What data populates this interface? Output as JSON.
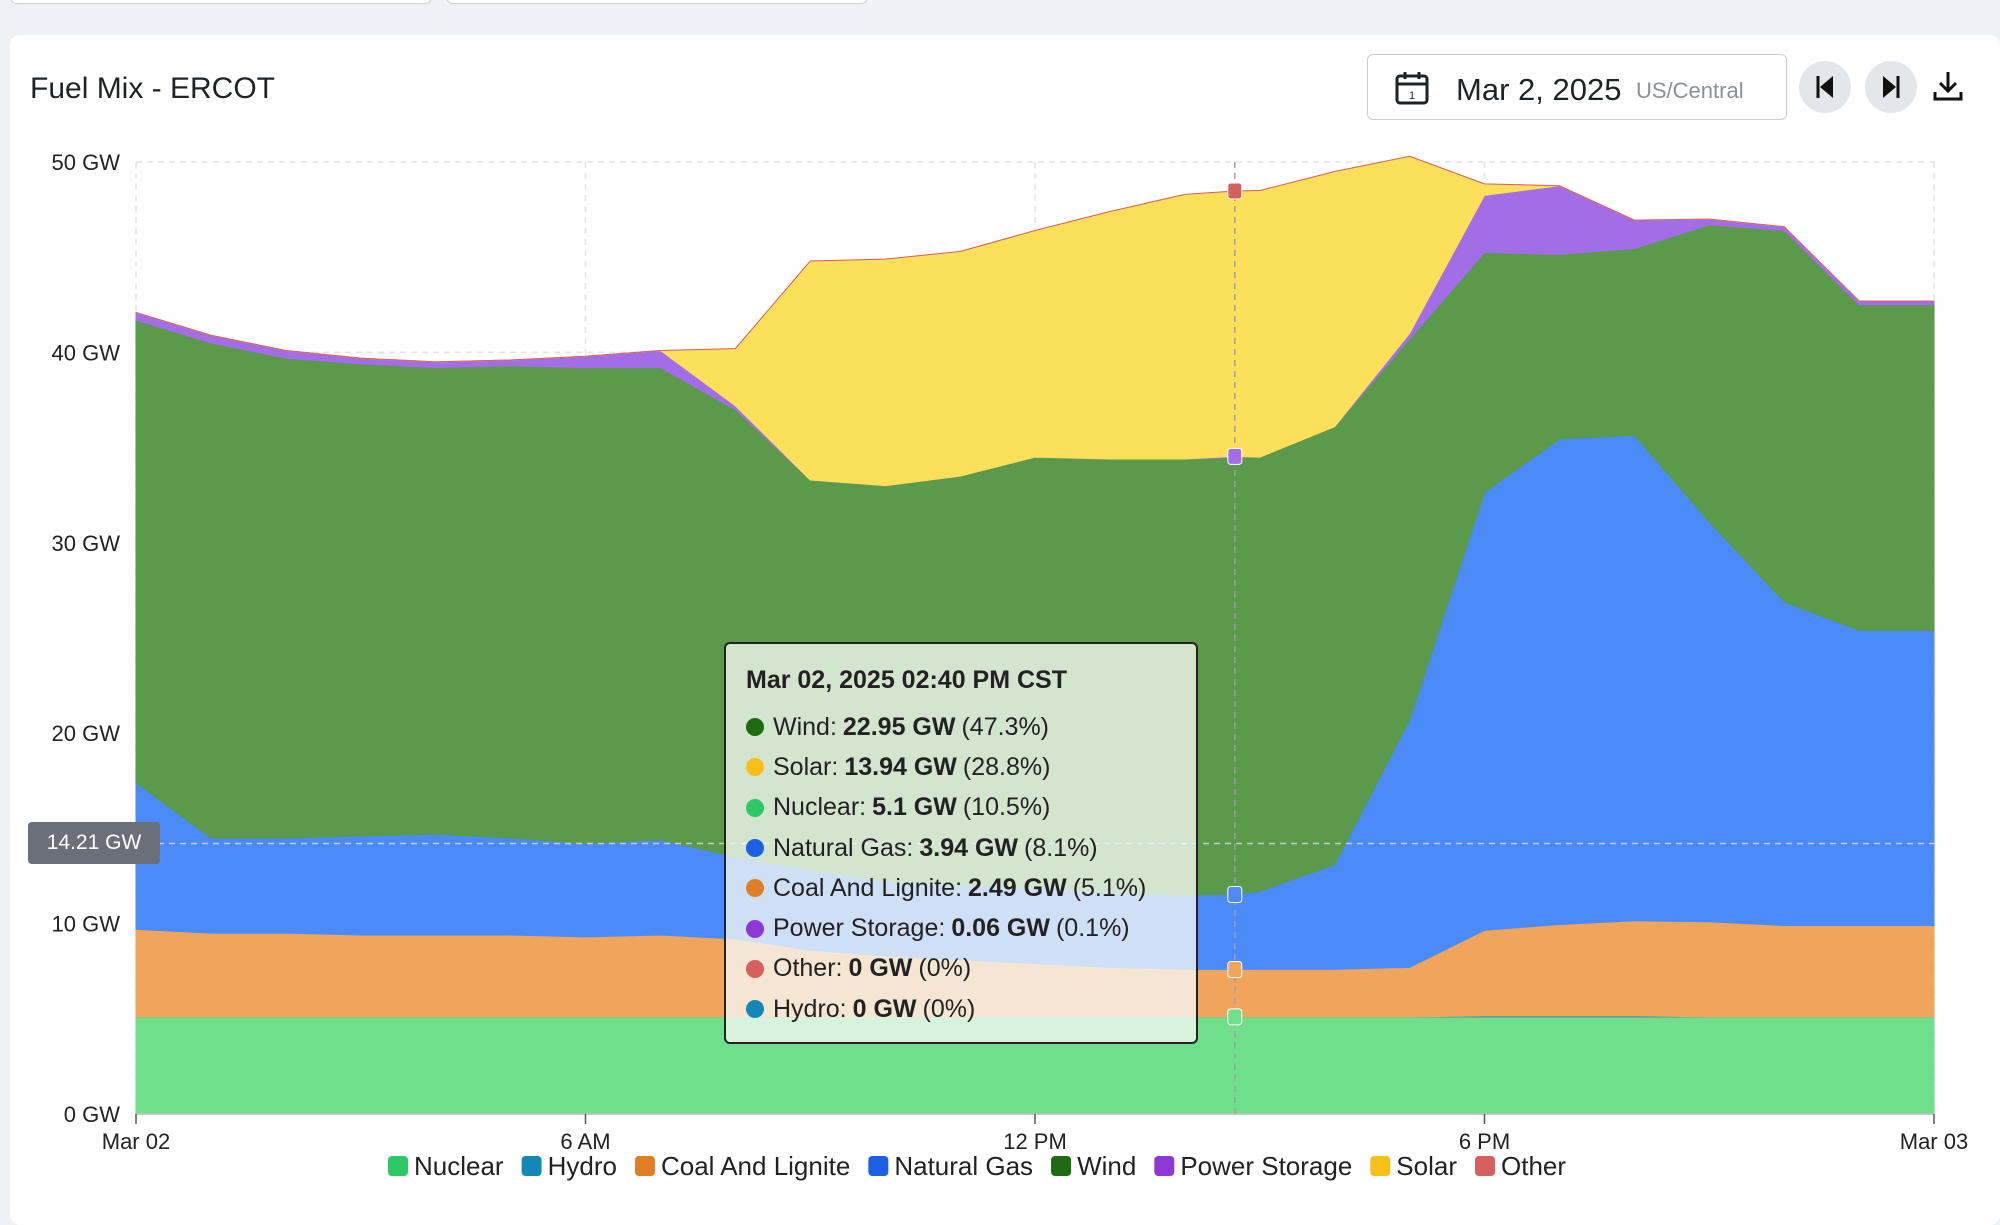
{
  "header": {
    "title": "Fuel Mix - ERCOT",
    "date": "Mar 2, 2025",
    "timezone": "US/Central"
  },
  "icons": {
    "calendar": "calendar-icon",
    "prev": "caret-left-icon",
    "next": "caret-right-icon",
    "download": "download-icon"
  },
  "tooltip": {
    "timestamp": "Mar 02, 2025 02:40 PM CST",
    "rows": [
      {
        "name": "Wind",
        "value": "22.95 GW",
        "pct": "(47.3%)",
        "color": "#1f6b12"
      },
      {
        "name": "Solar",
        "value": "13.94 GW",
        "pct": "(28.8%)",
        "color": "#f6c018"
      },
      {
        "name": "Nuclear",
        "value": "5.1 GW",
        "pct": "(10.5%)",
        "color": "#2ec866"
      },
      {
        "name": "Natural Gas",
        "value": "3.94 GW",
        "pct": "(8.1%)",
        "color": "#1c5fe3"
      },
      {
        "name": "Coal And Lignite",
        "value": "2.49 GW",
        "pct": "(5.1%)",
        "color": "#e07f23"
      },
      {
        "name": "Power Storage",
        "value": "0.06 GW",
        "pct": "(0.1%)",
        "color": "#8e38d3"
      },
      {
        "name": "Other",
        "value": "0 GW",
        "pct": "(0%)",
        "color": "#d65f5f"
      },
      {
        "name": "Hydro",
        "value": "0 GW",
        "pct": "(0%)",
        "color": "#1388b6"
      }
    ]
  },
  "crosshair": {
    "label": "14.21 GW",
    "value": 14.21,
    "time_hours": 14.667
  },
  "chart_data": {
    "type": "area",
    "stacked": true,
    "x_unit": "hours since Mar 02 00:00 CST",
    "x": [
      0,
      1,
      2,
      3,
      4,
      5,
      6,
      7,
      8,
      9,
      10,
      11,
      12,
      13,
      14,
      14.667,
      15,
      16,
      17,
      18,
      19,
      20,
      21,
      22,
      23,
      24
    ],
    "xlim": [
      0,
      24
    ],
    "ylim": [
      0,
      50
    ],
    "x_ticks": [
      {
        "x": 0,
        "label": "Mar 02"
      },
      {
        "x": 6,
        "label": "6 AM"
      },
      {
        "x": 12,
        "label": "12 PM"
      },
      {
        "x": 18,
        "label": "6 PM"
      },
      {
        "x": 24,
        "label": "Mar 03"
      }
    ],
    "y_ticks": [
      {
        "y": 0,
        "label": "0 GW"
      },
      {
        "y": 10,
        "label": "10 GW"
      },
      {
        "y": 20,
        "label": "20 GW"
      },
      {
        "y": 30,
        "label": "30 GW"
      },
      {
        "y": 40,
        "label": "40 GW"
      },
      {
        "y": 50,
        "label": "50 GW"
      }
    ],
    "grid": true,
    "legend_position": "bottom",
    "series": [
      {
        "name": "Nuclear",
        "color": "#6fdf8c",
        "values": [
          5.1,
          5.1,
          5.1,
          5.1,
          5.1,
          5.1,
          5.1,
          5.1,
          5.1,
          5.1,
          5.1,
          5.1,
          5.1,
          5.1,
          5.1,
          5.1,
          5.1,
          5.1,
          5.1,
          5.1,
          5.1,
          5.1,
          5.1,
          5.1,
          5.1,
          5.1
        ]
      },
      {
        "name": "Hydro",
        "color": "#1388b6",
        "values": [
          0,
          0,
          0,
          0,
          0,
          0,
          0,
          0,
          0,
          0,
          0,
          0,
          0,
          0,
          0,
          0,
          0,
          0,
          0,
          0.05,
          0.05,
          0.05,
          0,
          0,
          0,
          0
        ]
      },
      {
        "name": "Coal And Lignite",
        "color": "#f0a45c",
        "values": [
          4.6,
          4.4,
          4.4,
          4.3,
          4.3,
          4.3,
          4.2,
          4.3,
          4.1,
          3.5,
          3.2,
          3.0,
          2.8,
          2.6,
          2.5,
          2.49,
          2.5,
          2.5,
          2.6,
          4.5,
          4.8,
          5.0,
          5.0,
          4.8,
          4.8,
          4.8
        ]
      },
      {
        "name": "Natural Gas",
        "color": "#4a8af9",
        "values": [
          7.7,
          5.0,
          5.0,
          5.2,
          5.3,
          5.1,
          4.9,
          5.0,
          4.3,
          4.2,
          3.9,
          3.9,
          4.0,
          3.9,
          3.9,
          3.94,
          4.1,
          5.5,
          13.0,
          23.0,
          25.5,
          25.5,
          21.0,
          17.0,
          15.5,
          15.5
        ]
      },
      {
        "name": "Wind",
        "color": "#5b9a4a",
        "values": [
          24.3,
          26.0,
          25.2,
          24.8,
          24.5,
          24.8,
          25.0,
          24.8,
          23.5,
          20.5,
          20.8,
          21.5,
          22.6,
          22.8,
          22.9,
          22.95,
          22.8,
          23.0,
          20.0,
          12.6,
          9.7,
          9.8,
          15.6,
          19.5,
          17.1,
          17.1
        ]
      },
      {
        "name": "Power Storage",
        "color": "#a36de8",
        "values": [
          0.4,
          0.4,
          0.4,
          0.3,
          0.3,
          0.3,
          0.6,
          0.9,
          0.2,
          0,
          0,
          0,
          0,
          0,
          0,
          0.06,
          0,
          0,
          0.3,
          3.0,
          3.6,
          1.5,
          0.3,
          0.2,
          0.2,
          0.2
        ]
      },
      {
        "name": "Solar",
        "color": "#fde05a",
        "values": [
          0,
          0,
          0,
          0,
          0,
          0,
          0,
          0,
          3.0,
          11.5,
          11.9,
          11.8,
          11.9,
          13.0,
          13.9,
          13.94,
          14.0,
          13.4,
          9.3,
          0.6,
          0,
          0,
          0,
          0,
          0,
          0
        ]
      },
      {
        "name": "Other",
        "color": "#d65f5f",
        "values": [
          0,
          0,
          0,
          0,
          0,
          0,
          0,
          0,
          0,
          0,
          0,
          0,
          0,
          0,
          0,
          0,
          0,
          0,
          0,
          0,
          0,
          0,
          0,
          0,
          0,
          0
        ]
      }
    ]
  },
  "legend": [
    {
      "label": "Nuclear",
      "color": "#2ec866"
    },
    {
      "label": "Hydro",
      "color": "#1388b6"
    },
    {
      "label": "Coal And Lignite",
      "color": "#e07f23"
    },
    {
      "label": "Natural Gas",
      "color": "#1c5fe3"
    },
    {
      "label": "Wind",
      "color": "#1f6b12"
    },
    {
      "label": "Power Storage",
      "color": "#8e38d3"
    },
    {
      "label": "Solar",
      "color": "#f6c018"
    },
    {
      "label": "Other",
      "color": "#d65f5f"
    }
  ]
}
